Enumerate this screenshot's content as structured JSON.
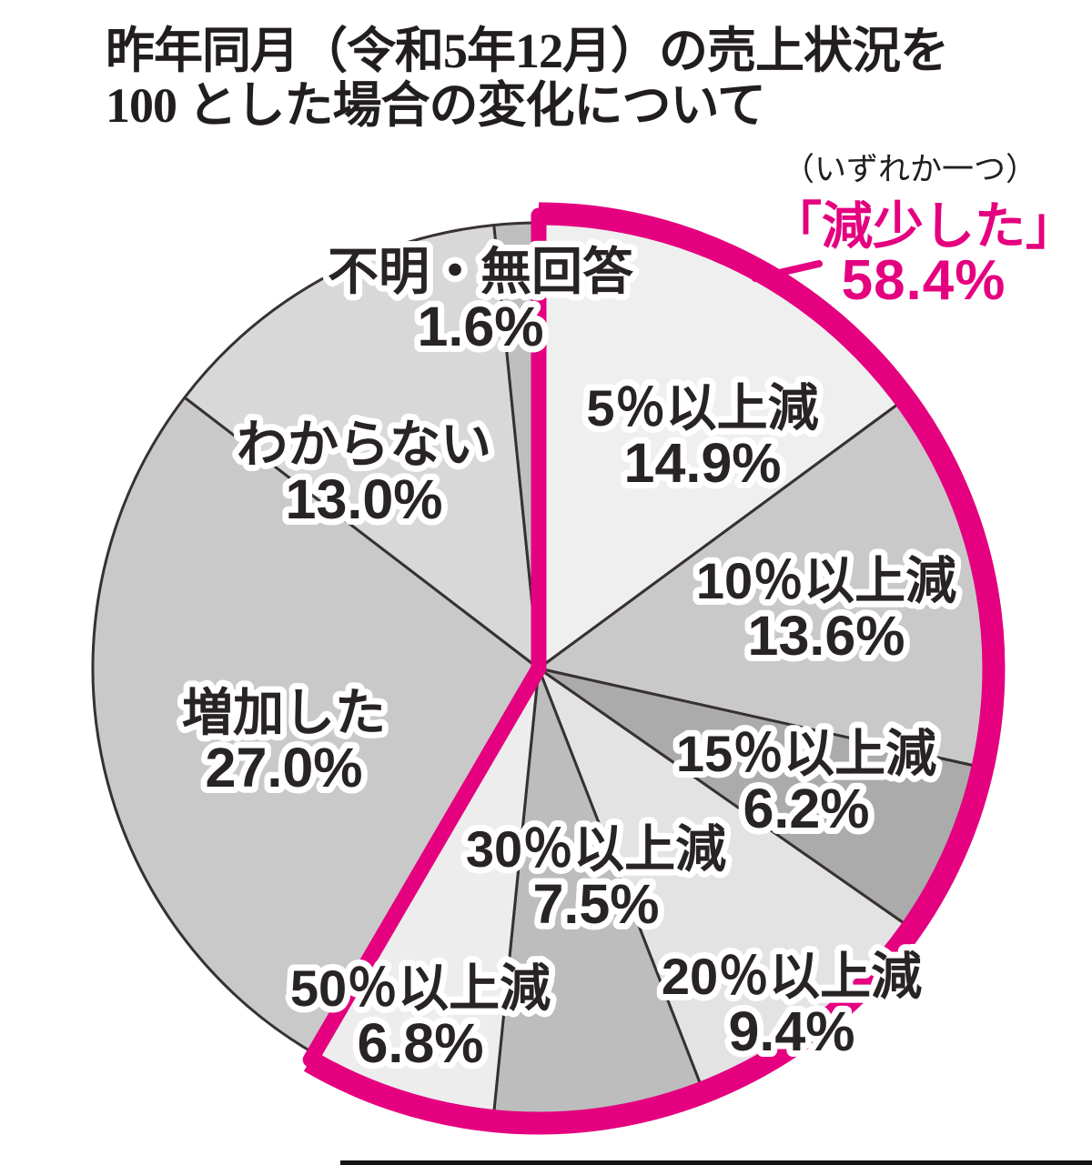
{
  "title": {
    "line1": "昨年同月（令和5年12月）の売上状況を",
    "line2": "100 とした場合の変化について",
    "note": "（いずれか一つ）"
  },
  "callout": {
    "label": "「減少した」",
    "value": "58.4%"
  },
  "chart_data": {
    "type": "pie",
    "title": "昨年同月（令和5年12月）の売上状況を100とした場合の変化について",
    "subtitle": "（いずれか一つ）",
    "unit": "%",
    "start_angle_deg": 0,
    "direction": "clockwise",
    "legend_position": "none",
    "categories": [
      "5％以上減",
      "10％以上減",
      "15％以上減",
      "20％以上減",
      "30％以上減",
      "50％以上減",
      "増加した",
      "わからない",
      "不明・無回答"
    ],
    "values": [
      14.9,
      13.6,
      6.2,
      9.4,
      7.5,
      6.8,
      27.0,
      13.0,
      1.6
    ],
    "slices": [
      {
        "label": "5％以上減",
        "value": 14.9,
        "display": "14.9%",
        "color": "#efefef"
      },
      {
        "label": "10％以上減",
        "value": 13.6,
        "display": "13.6%",
        "color": "#c9c9c9"
      },
      {
        "label": "15％以上減",
        "value": 6.2,
        "display": "6.2%",
        "color": "#ababab"
      },
      {
        "label": "20％以上減",
        "value": 9.4,
        "display": "9.4%",
        "color": "#e3e3e3"
      },
      {
        "label": "30％以上減",
        "value": 7.5,
        "display": "7.5%",
        "color": "#bdbdbd"
      },
      {
        "label": "50％以上減",
        "value": 6.8,
        "display": "6.8%",
        "color": "#ededed"
      },
      {
        "label": "増加した",
        "value": 27.0,
        "display": "27.0%",
        "color": "#c9c9c9"
      },
      {
        "label": "わからない",
        "value": 13.0,
        "display": "13.0%",
        "color": "#d8d8d8"
      },
      {
        "label": "不明・無回答",
        "value": 1.6,
        "display": "1.6%",
        "color": "#bfbfbf"
      }
    ],
    "highlight_group": {
      "label": "「減少した」",
      "value": 58.4,
      "display": "58.4%",
      "color": "#e4007f",
      "covers": [
        "5％以上減",
        "10％以上減",
        "15％以上減",
        "20％以上減",
        "30％以上減",
        "50％以上減"
      ]
    },
    "outline_color": "#37312f",
    "label_halo_color": "#ffffff"
  }
}
